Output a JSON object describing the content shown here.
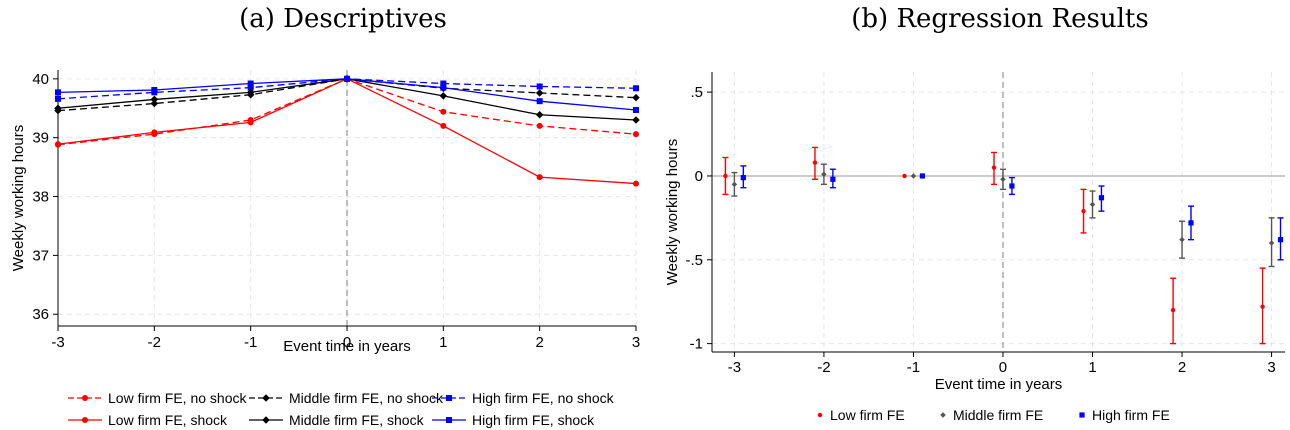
{
  "chart_data": [
    {
      "panel": "a",
      "type": "line",
      "title": "(a) Descriptives",
      "xlabel": "Event time in years",
      "ylabel": "Weekly working hours",
      "x": [
        -3,
        -2,
        -1,
        0,
        1,
        2,
        3
      ],
      "xlim": [
        -3,
        3
      ],
      "ylim": [
        35.8,
        40.15
      ],
      "yticks": [
        36,
        37,
        38,
        39,
        40
      ],
      "reference_line_x": 0,
      "grid": true,
      "legend_position": "bottom",
      "series": [
        {
          "name": "Low firm FE, no shock",
          "color": "#ff0000",
          "dash": true,
          "marker": "circle",
          "values": [
            38.88,
            39.06,
            39.3,
            40.0,
            39.44,
            39.2,
            39.06
          ]
        },
        {
          "name": "Middle firm FE, no shock",
          "color": "#000000",
          "dash": true,
          "marker": "diamond",
          "values": [
            39.46,
            39.58,
            39.73,
            40.0,
            39.84,
            39.76,
            39.68
          ]
        },
        {
          "name": "High firm FE, no shock",
          "color": "#0000ff",
          "dash": true,
          "marker": "square",
          "values": [
            39.66,
            39.77,
            39.85,
            40.0,
            39.92,
            39.87,
            39.84
          ]
        },
        {
          "name": "Low firm FE, shock",
          "color": "#ff0000",
          "dash": false,
          "marker": "circle",
          "values": [
            38.89,
            39.09,
            39.26,
            40.0,
            39.2,
            38.33,
            38.22
          ]
        },
        {
          "name": "Middle firm FE, shock",
          "color": "#000000",
          "dash": false,
          "marker": "diamond",
          "values": [
            39.5,
            39.65,
            39.77,
            40.0,
            39.71,
            39.39,
            39.3
          ]
        },
        {
          "name": "High firm FE, shock",
          "color": "#0000ff",
          "dash": false,
          "marker": "square",
          "values": [
            39.77,
            39.81,
            39.92,
            40.0,
            39.85,
            39.62,
            39.47
          ]
        }
      ]
    },
    {
      "panel": "b",
      "type": "scatter",
      "title": "(b) Regression Results",
      "xlabel": "Event time in years",
      "ylabel": "Weekly working hours",
      "x": [
        -3,
        -2,
        -1,
        0,
        1,
        2,
        3
      ],
      "xlim": [
        -3.25,
        3.15
      ],
      "ylim": [
        -1.05,
        0.62
      ],
      "yticks": [
        0.5,
        0,
        -0.5,
        -1
      ],
      "ytick_labels": [
        ".5",
        "0",
        "-.5",
        "-1"
      ],
      "reference_line_x": 0,
      "reference_line_y": 0,
      "grid": true,
      "legend_position": "bottom",
      "series": [
        {
          "name": "Low firm FE",
          "color": "#ff0000",
          "marker": "circle",
          "x_offset": -0.1,
          "values": [
            0.0,
            0.08,
            0.0,
            0.05,
            -0.21,
            -0.8,
            -0.78
          ],
          "ci_low": [
            -0.11,
            -0.02,
            0.0,
            -0.05,
            -0.34,
            -1.0,
            -1.0
          ],
          "ci_high": [
            0.11,
            0.17,
            0.0,
            0.14,
            -0.08,
            -0.61,
            -0.55
          ]
        },
        {
          "name": "Middle firm FE",
          "color": "#555555",
          "marker": "diamond",
          "x_offset": 0.0,
          "values": [
            -0.05,
            0.01,
            0.0,
            -0.02,
            -0.17,
            -0.38,
            -0.4
          ],
          "ci_low": [
            -0.12,
            -0.05,
            0.0,
            -0.08,
            -0.25,
            -0.49,
            -0.54
          ],
          "ci_high": [
            0.02,
            0.07,
            0.0,
            0.04,
            -0.09,
            -0.27,
            -0.25
          ]
        },
        {
          "name": "High firm FE",
          "color": "#0000ff",
          "marker": "square",
          "x_offset": 0.1,
          "values": [
            -0.01,
            -0.02,
            0.0,
            -0.06,
            -0.13,
            -0.28,
            -0.38
          ],
          "ci_low": [
            -0.07,
            -0.07,
            0.0,
            -0.11,
            -0.21,
            -0.38,
            -0.5
          ],
          "ci_high": [
            0.06,
            0.04,
            0.0,
            -0.01,
            -0.06,
            -0.18,
            -0.25
          ]
        }
      ]
    }
  ]
}
